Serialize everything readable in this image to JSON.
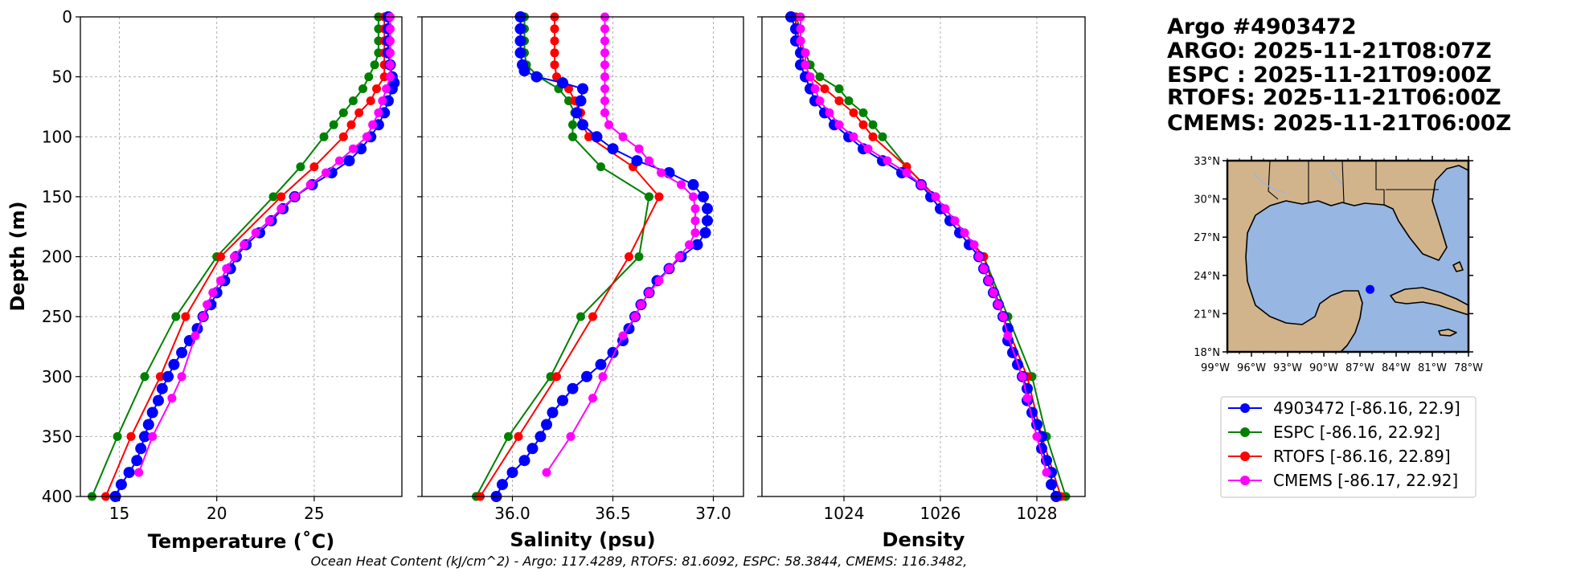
{
  "chart_data": [
    {
      "type": "line",
      "panel": "temperature",
      "xlabel": "Temperature (˚C)",
      "ylabel": "Depth (m)",
      "xlim": [
        13,
        29.5
      ],
      "ylim": [
        400,
        0
      ],
      "xticks": [
        15,
        20,
        25
      ],
      "yticks": [
        0,
        50,
        100,
        150,
        200,
        250,
        300,
        350,
        400
      ],
      "grid": true,
      "series": [
        {
          "name": "ESPC",
          "color": "#008000",
          "depth": [
            0,
            10,
            20,
            30,
            40,
            50,
            60,
            70,
            80,
            90,
            100,
            125,
            150,
            200,
            250,
            300,
            350,
            400
          ],
          "values": [
            28.3,
            28.3,
            28.3,
            28.3,
            28.1,
            27.8,
            27.5,
            27.0,
            26.5,
            26.0,
            25.5,
            24.3,
            22.9,
            20.0,
            17.9,
            16.3,
            14.9,
            13.6
          ]
        },
        {
          "name": "RTOFS",
          "color": "#ff0000",
          "depth": [
            0,
            10,
            20,
            30,
            40,
            50,
            60,
            70,
            80,
            90,
            100,
            125,
            150,
            200,
            250,
            300,
            350,
            400
          ],
          "values": [
            28.6,
            28.6,
            28.6,
            28.6,
            28.6,
            28.6,
            28.2,
            27.9,
            27.3,
            26.9,
            26.5,
            25.0,
            23.3,
            20.2,
            18.4,
            17.1,
            15.6,
            14.3
          ]
        },
        {
          "name": "4903472",
          "color": "#0000ff",
          "depth": [
            0,
            10,
            20,
            30,
            40,
            50,
            55,
            60,
            70,
            80,
            90,
            100,
            110,
            120,
            130,
            140,
            150,
            160,
            170,
            180,
            190,
            200,
            210,
            220,
            230,
            240,
            250,
            260,
            270,
            280,
            290,
            300,
            310,
            320,
            330,
            340,
            350,
            360,
            370,
            380,
            390,
            400
          ],
          "values": [
            28.8,
            28.8,
            28.8,
            28.8,
            28.9,
            29.0,
            29.1,
            29.0,
            28.8,
            28.6,
            28.3,
            27.9,
            27.4,
            26.8,
            25.9,
            24.9,
            24.0,
            23.4,
            22.8,
            22.2,
            21.5,
            21.0,
            20.7,
            20.4,
            20.0,
            19.7,
            19.3,
            19.0,
            18.6,
            18.2,
            17.8,
            17.5,
            17.2,
            17.0,
            16.7,
            16.5,
            16.3,
            16.1,
            15.9,
            15.5,
            15.1,
            14.8
          ]
        },
        {
          "name": "CMEMS",
          "color": "#ff00ff",
          "depth": [
            0,
            10,
            20,
            30,
            40,
            50,
            60,
            70,
            80,
            90,
            100,
            110,
            120,
            130,
            140,
            150,
            160,
            170,
            180,
            190,
            200,
            210,
            220,
            230,
            240,
            250,
            266,
            300,
            318,
            350,
            380
          ],
          "values": [
            28.9,
            28.9,
            28.9,
            28.9,
            28.9,
            28.9,
            28.7,
            28.5,
            28.3,
            28.0,
            27.7,
            27.0,
            26.3,
            25.6,
            24.8,
            24.0,
            23.3,
            22.7,
            22.0,
            21.4,
            20.9,
            20.5,
            20.2,
            19.8,
            19.5,
            19.3,
            18.9,
            18.2,
            17.7,
            16.7,
            16.0
          ]
        }
      ]
    },
    {
      "type": "line",
      "panel": "salinity",
      "xlabel": "Salinity (psu)",
      "xlim": [
        35.55,
        37.15
      ],
      "ylim": [
        400,
        0
      ],
      "xticks": [
        "36.0",
        "36.5",
        "37.0"
      ],
      "xtick_values": [
        36.0,
        36.5,
        37.0
      ],
      "grid": true,
      "series": [
        {
          "name": "ESPC",
          "color": "#008000",
          "depth": [
            0,
            10,
            20,
            30,
            40,
            50,
            60,
            70,
            80,
            90,
            100,
            125,
            150,
            200,
            250,
            300,
            350,
            400
          ],
          "values": [
            36.06,
            36.06,
            36.06,
            36.06,
            36.07,
            36.13,
            36.23,
            36.28,
            36.31,
            36.3,
            36.3,
            36.44,
            36.68,
            36.63,
            36.34,
            36.19,
            35.98,
            35.82
          ]
        },
        {
          "name": "RTOFS",
          "color": "#ff0000",
          "depth": [
            0,
            10,
            20,
            30,
            40,
            50,
            60,
            70,
            80,
            90,
            100,
            125,
            150,
            200,
            250,
            300,
            350,
            400
          ],
          "values": [
            36.21,
            36.21,
            36.21,
            36.21,
            36.21,
            36.22,
            36.28,
            36.31,
            36.34,
            36.35,
            36.38,
            36.6,
            36.73,
            36.58,
            36.4,
            36.22,
            36.03,
            35.84
          ]
        },
        {
          "name": "4903472",
          "color": "#0000ff",
          "depth": [
            0,
            10,
            20,
            30,
            40,
            45,
            50,
            55,
            60,
            70,
            80,
            90,
            100,
            110,
            120,
            130,
            140,
            150,
            160,
            170,
            180,
            190,
            200,
            210,
            220,
            230,
            240,
            250,
            260,
            270,
            280,
            290,
            300,
            310,
            320,
            330,
            340,
            350,
            360,
            370,
            380,
            390,
            400
          ],
          "values": [
            36.04,
            36.04,
            36.04,
            36.04,
            36.05,
            36.06,
            36.12,
            36.25,
            36.35,
            36.34,
            36.32,
            36.35,
            36.42,
            36.5,
            36.62,
            36.78,
            36.9,
            36.95,
            36.97,
            36.97,
            36.96,
            36.92,
            36.84,
            36.78,
            36.72,
            36.68,
            36.64,
            36.61,
            36.58,
            36.55,
            36.5,
            36.44,
            36.37,
            36.3,
            36.25,
            36.2,
            36.17,
            36.14,
            36.1,
            36.06,
            36.0,
            35.95,
            35.92
          ]
        },
        {
          "name": "CMEMS",
          "color": "#ff00ff",
          "depth": [
            0,
            10,
            20,
            30,
            40,
            50,
            60,
            70,
            80,
            90,
            100,
            110,
            120,
            130,
            140,
            150,
            160,
            170,
            180,
            190,
            200,
            210,
            220,
            230,
            240,
            250,
            266,
            300,
            318,
            350,
            380
          ],
          "values": [
            36.46,
            36.46,
            36.46,
            36.46,
            36.46,
            36.46,
            36.46,
            36.46,
            36.46,
            36.48,
            36.55,
            36.63,
            36.68,
            36.74,
            36.84,
            36.9,
            36.91,
            36.91,
            36.91,
            36.88,
            36.83,
            36.78,
            36.73,
            36.68,
            36.64,
            36.61,
            36.55,
            36.45,
            36.4,
            36.29,
            36.17
          ]
        }
      ]
    },
    {
      "type": "line",
      "panel": "density",
      "xlabel": "Density",
      "xlim": [
        1022.3,
        1029.0
      ],
      "ylim": [
        400,
        0
      ],
      "xticks": [
        1024,
        1026,
        1028
      ],
      "grid": true,
      "series": [
        {
          "name": "ESPC",
          "color": "#008000",
          "depth": [
            0,
            10,
            20,
            30,
            40,
            50,
            60,
            70,
            80,
            90,
            100,
            125,
            150,
            200,
            250,
            300,
            350,
            400
          ],
          "values": [
            1023.0,
            1023.1,
            1023.1,
            1023.2,
            1023.3,
            1023.5,
            1023.9,
            1024.1,
            1024.4,
            1024.6,
            1024.8,
            1025.3,
            1025.9,
            1026.9,
            1027.4,
            1027.9,
            1028.2,
            1028.6
          ]
        },
        {
          "name": "RTOFS",
          "color": "#ff0000",
          "depth": [
            0,
            10,
            20,
            30,
            40,
            50,
            60,
            70,
            80,
            90,
            100,
            125,
            150,
            200,
            250,
            300,
            350,
            400
          ],
          "values": [
            1023.0,
            1023.0,
            1023.1,
            1023.1,
            1023.2,
            1023.3,
            1023.6,
            1023.9,
            1024.2,
            1024.4,
            1024.6,
            1025.3,
            1025.9,
            1026.9,
            1027.3,
            1027.8,
            1028.1,
            1028.5
          ]
        },
        {
          "name": "4903472",
          "color": "#0000ff",
          "depth": [
            0,
            10,
            20,
            30,
            40,
            50,
            60,
            70,
            80,
            90,
            100,
            110,
            120,
            130,
            140,
            150,
            160,
            170,
            180,
            190,
            200,
            210,
            220,
            230,
            240,
            250,
            260,
            270,
            280,
            290,
            300,
            310,
            320,
            330,
            340,
            350,
            360,
            370,
            380,
            390,
            400
          ],
          "values": [
            1022.9,
            1023.0,
            1023.0,
            1023.1,
            1023.1,
            1023.2,
            1023.3,
            1023.4,
            1023.6,
            1023.8,
            1024.1,
            1024.4,
            1024.8,
            1025.2,
            1025.6,
            1025.8,
            1026.0,
            1026.2,
            1026.4,
            1026.6,
            1026.8,
            1026.9,
            1027.0,
            1027.1,
            1027.2,
            1027.3,
            1027.4,
            1027.4,
            1027.5,
            1027.6,
            1027.7,
            1027.8,
            1027.8,
            1027.9,
            1028.0,
            1028.1,
            1028.1,
            1028.2,
            1028.3,
            1028.3,
            1028.4
          ]
        },
        {
          "name": "CMEMS",
          "color": "#ff00ff",
          "depth": [
            0,
            10,
            20,
            30,
            40,
            50,
            60,
            70,
            80,
            90,
            100,
            110,
            120,
            130,
            140,
            150,
            160,
            170,
            180,
            190,
            200,
            210,
            220,
            230,
            240,
            250,
            266,
            300,
            318,
            350,
            380
          ],
          "values": [
            1023.1,
            1023.1,
            1023.1,
            1023.2,
            1023.2,
            1023.3,
            1023.4,
            1023.5,
            1023.7,
            1023.9,
            1024.2,
            1024.5,
            1024.9,
            1025.3,
            1025.6,
            1025.9,
            1026.1,
            1026.3,
            1026.5,
            1026.7,
            1026.8,
            1026.9,
            1027.0,
            1027.1,
            1027.2,
            1027.3,
            1027.4,
            1027.7,
            1027.8,
            1028.0,
            1028.2
          ]
        }
      ]
    }
  ],
  "info": {
    "line1": "Argo #4903472",
    "line2": "ARGO: 2025-11-21T08:07Z",
    "line3": "ESPC : 2025-11-21T09:00Z",
    "line4": "RTOFS: 2025-11-21T06:00Z",
    "line5": "CMEMS: 2025-11-21T06:00Z"
  },
  "map": {
    "lat_labels": [
      "33°N",
      "30°N",
      "27°N",
      "24°N",
      "21°N",
      "18°N"
    ],
    "lat_values": [
      33,
      30,
      27,
      24,
      21,
      18
    ],
    "lon_labels": [
      "99°W",
      "96°W",
      "93°W",
      "90°W",
      "87°W",
      "84°W",
      "81°W",
      "78°W"
    ],
    "lon_values": [
      -99,
      -96,
      -93,
      -90,
      -87,
      -84,
      -81,
      -78
    ],
    "extent": {
      "lon_min": -98,
      "lon_max": -78,
      "lat_min": 18,
      "lat_max": 33
    },
    "float_position": {
      "lon": -86.16,
      "lat": 22.9
    },
    "land_color": "#d2b48c",
    "ocean_color": "#97b6e1",
    "float_color": "#0000ff"
  },
  "legend": [
    {
      "label": "4903472 [-86.16, 22.9]",
      "color": "#0000ff"
    },
    {
      "label": "ESPC [-86.16, 22.92]",
      "color": "#008000"
    },
    {
      "label": "RTOFS [-86.16, 22.89]",
      "color": "#ff0000"
    },
    {
      "label": "CMEMS [-86.17, 22.92]",
      "color": "#ff00ff"
    }
  ],
  "footer": "Ocean Heat Content (kJ/cm^2) - Argo: 117.4289,  RTOFS: 81.6092,  ESPC: 58.3844,  CMEMS: 116.3482,"
}
